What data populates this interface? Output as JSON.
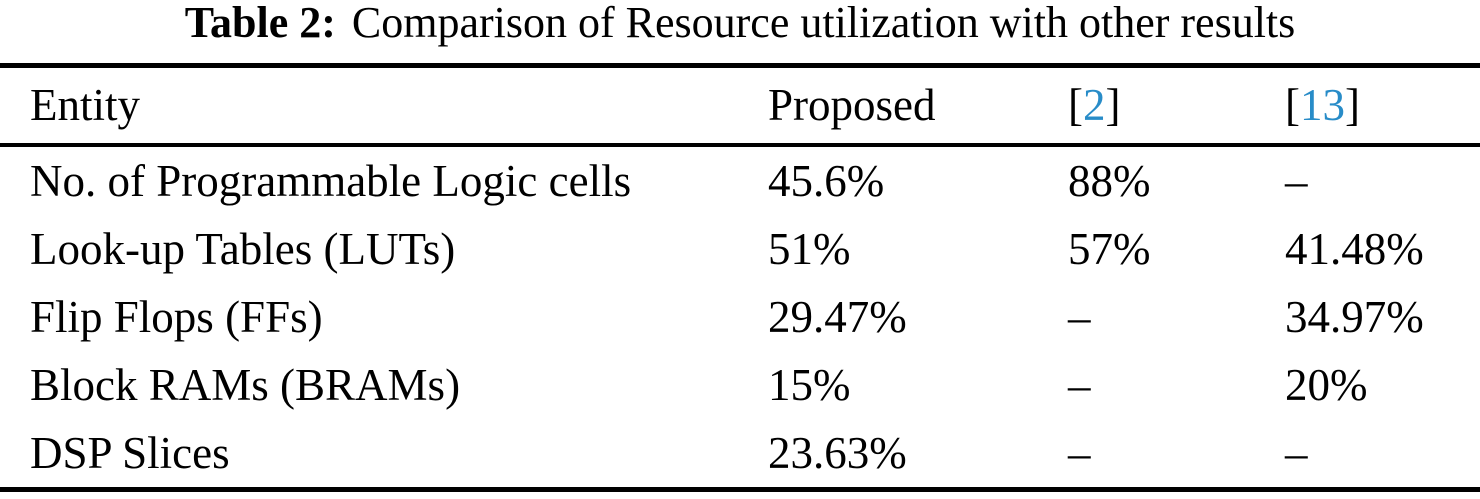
{
  "caption": {
    "label": "Table 2:",
    "text": "Comparison of Resource utilization with other results"
  },
  "colors": {
    "background": "#FFFFFF",
    "text": "#000000",
    "rule": "#000000",
    "citation_link": "#288CC8"
  },
  "table": {
    "headers": {
      "entity": "Entity",
      "proposed": "Proposed",
      "ref2": {
        "open": "[",
        "number": "2",
        "close": "]"
      },
      "ref13": {
        "open": "[",
        "number": "13",
        "close": "]"
      }
    },
    "rows": [
      {
        "entity": "No. of Programmable Logic cells",
        "proposed": "45.6%",
        "ref2": "88%",
        "ref13": "–"
      },
      {
        "entity": "Look-up Tables (LUTs)",
        "proposed": "51%",
        "ref2": "57%",
        "ref13": "41.48%"
      },
      {
        "entity": "Flip Flops (FFs)",
        "proposed": "29.47%",
        "ref2": "–",
        "ref13": "34.97%"
      },
      {
        "entity": "Block RAMs (BRAMs)",
        "proposed": "15%",
        "ref2": "–",
        "ref13": "20%"
      },
      {
        "entity": "DSP Slices",
        "proposed": "23.63%",
        "ref2": "–",
        "ref13": "–"
      }
    ]
  },
  "chart_data": {
    "type": "table",
    "title": "Table 2: Comparison of Resource utilization with other results",
    "columns": [
      "Entity",
      "Proposed",
      "[2]",
      "[13]"
    ],
    "rows": [
      [
        "No. of Programmable Logic cells",
        "45.6%",
        "88%",
        "–"
      ],
      [
        "Look-up Tables (LUTs)",
        "51%",
        "57%",
        "41.48%"
      ],
      [
        "Flip Flops (FFs)",
        "29.47%",
        "–",
        "34.97%"
      ],
      [
        "Block RAMs (BRAMs)",
        "15%",
        "–",
        "20%"
      ],
      [
        "DSP Slices",
        "23.63%",
        "–",
        "–"
      ]
    ]
  }
}
